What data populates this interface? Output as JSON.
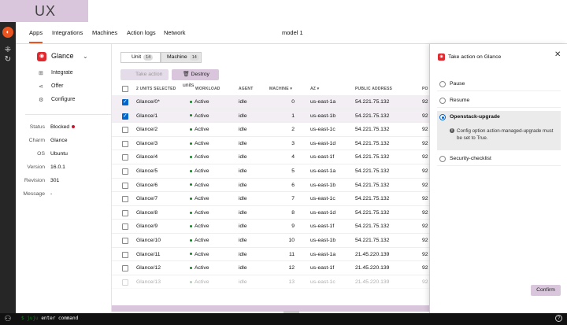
{
  "brand": {
    "ux_label": "UX",
    "accent": "#e95420",
    "purple": "#d9c6dc"
  },
  "header": {
    "tabs": [
      "Apps",
      "Integrations",
      "Machines",
      "Action logs",
      "Network"
    ],
    "active_tab": "Apps",
    "model_name": "model 1"
  },
  "app": {
    "name": "Glance",
    "actions": [
      {
        "label": "Integrate",
        "icon": "integrate-icon"
      },
      {
        "label": "Offer",
        "icon": "share-icon"
      },
      {
        "label": "Configure",
        "icon": "gear-icon"
      }
    ],
    "info": [
      {
        "label": "Status",
        "value": "Blocked"
      },
      {
        "label": "Charm",
        "value": "Glance"
      },
      {
        "label": "OS",
        "value": "Ubuntu"
      },
      {
        "label": "Version",
        "value": "16.0.1"
      },
      {
        "label": "Revision",
        "value": "301"
      },
      {
        "label": "Message",
        "value": "-"
      }
    ]
  },
  "table": {
    "segments": [
      {
        "label": "Unit",
        "count": "14"
      },
      {
        "label": "Machine",
        "count": "14"
      }
    ],
    "take_action_label": "Take action",
    "destroy_label": "Destroy units",
    "headers": {
      "selected": "2 UNITS SELECTED",
      "workload": "WORKLOAD",
      "agent": "AGENT",
      "machine": "MACHINE ▾",
      "az": "AZ ▾",
      "address": "PUBLIC ADDRESS",
      "port": "PO"
    },
    "rows": [
      {
        "unit": "Glance/0*",
        "workload": "Active",
        "agent": "idle",
        "machine": "0",
        "az": "us-east-1a",
        "address": "54.221.75.132",
        "port": "92",
        "checked": true
      },
      {
        "unit": "Glance/1",
        "workload": "Active",
        "agent": "idle",
        "machine": "1",
        "az": "us-east-1b",
        "address": "54.221.75.132",
        "port": "92",
        "checked": true
      },
      {
        "unit": "Glance/2",
        "workload": "Active",
        "agent": "idle",
        "machine": "2",
        "az": "us-east-1c",
        "address": "54.221.75.132",
        "port": "92",
        "checked": false
      },
      {
        "unit": "Glance/3",
        "workload": "Active",
        "agent": "idle",
        "machine": "3",
        "az": "us-east-1d",
        "address": "54.221.75.132",
        "port": "92",
        "checked": false
      },
      {
        "unit": "Glance/4",
        "workload": "Active",
        "agent": "idle",
        "machine": "4",
        "az": "us-east-1f",
        "address": "54.221.75.132",
        "port": "92",
        "checked": false
      },
      {
        "unit": "Glance/5",
        "workload": "Active",
        "agent": "idle",
        "machine": "5",
        "az": "us-east-1a",
        "address": "54.221.75.132",
        "port": "92",
        "checked": false
      },
      {
        "unit": "Glance/6",
        "workload": "Active",
        "agent": "idle",
        "machine": "6",
        "az": "us-east-1b",
        "address": "54.221.75.132",
        "port": "92",
        "checked": false
      },
      {
        "unit": "Glance/7",
        "workload": "Active",
        "agent": "idle",
        "machine": "7",
        "az": "us-east-1c",
        "address": "54.221.75.132",
        "port": "92",
        "checked": false
      },
      {
        "unit": "Glance/8",
        "workload": "Active",
        "agent": "idle",
        "machine": "8",
        "az": "us-east-1d",
        "address": "54.221.75.132",
        "port": "92",
        "checked": false
      },
      {
        "unit": "Glance/9",
        "workload": "Active",
        "agent": "idle",
        "machine": "9",
        "az": "us-east-1f",
        "address": "54.221.75.132",
        "port": "92",
        "checked": false
      },
      {
        "unit": "Glance/10",
        "workload": "Active",
        "agent": "idle",
        "machine": "10",
        "az": "us-east-1b",
        "address": "54.221.75.132",
        "port": "92",
        "checked": false
      },
      {
        "unit": "Glance/11",
        "workload": "Active",
        "agent": "idle",
        "machine": "11",
        "az": "us-east-1a",
        "address": "21.45.220.139",
        "port": "92",
        "checked": false
      },
      {
        "unit": "Glance/12",
        "workload": "Active",
        "agent": "idle",
        "machine": "12",
        "az": "us-east-1f",
        "address": "21.45.220.139",
        "port": "92",
        "checked": false
      },
      {
        "unit": "Glance/13",
        "workload": "Active",
        "agent": "idle",
        "machine": "13",
        "az": "us-east-1c",
        "address": "21.45.220.139",
        "port": "92",
        "checked": false
      }
    ]
  },
  "panel": {
    "title": "Take action on Glance",
    "options": [
      {
        "label": "Pause",
        "selected": false
      },
      {
        "label": "Resume",
        "selected": false
      },
      {
        "label": "Openstack-upgrade",
        "selected": true,
        "note": "Config option action-managed-upgrade must be set to True."
      },
      {
        "label": "Security-checklist",
        "selected": false
      }
    ],
    "confirm_label": "Confirm"
  },
  "terminal": {
    "prompt": "$ juju",
    "placeholder": "enter command",
    "help": "?"
  }
}
